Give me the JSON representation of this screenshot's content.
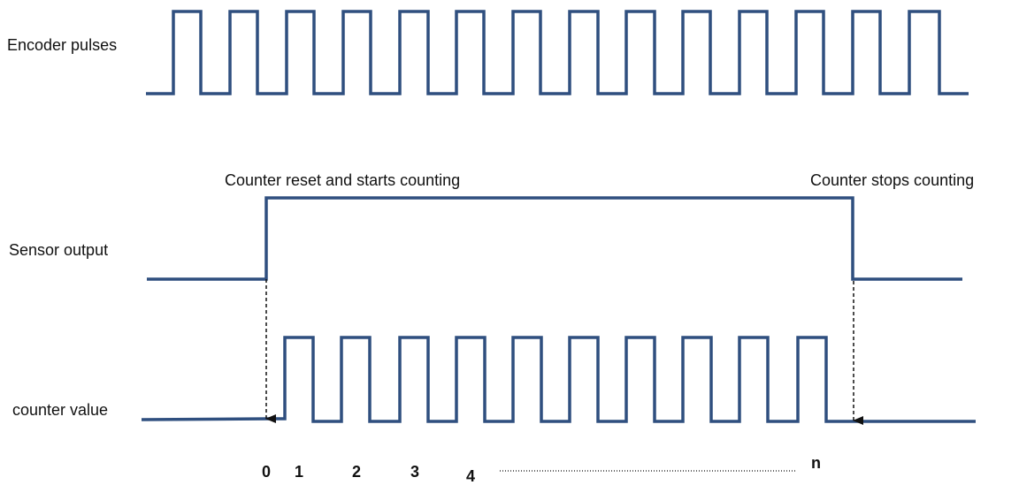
{
  "labels": {
    "encoder_pulses": "Encoder pulses",
    "sensor_output": "Sensor output",
    "counter_value": "counter value",
    "counter_reset": "Counter reset and starts counting",
    "counter_stops": "Counter stops counting"
  },
  "counts": {
    "c0": "0",
    "c1": "1",
    "c2": "2",
    "c3": "3",
    "c4": "4",
    "cn": "n"
  },
  "colors": {
    "waveform": "#2f4f7f",
    "arrow": "#111111",
    "text": "#111111"
  }
}
